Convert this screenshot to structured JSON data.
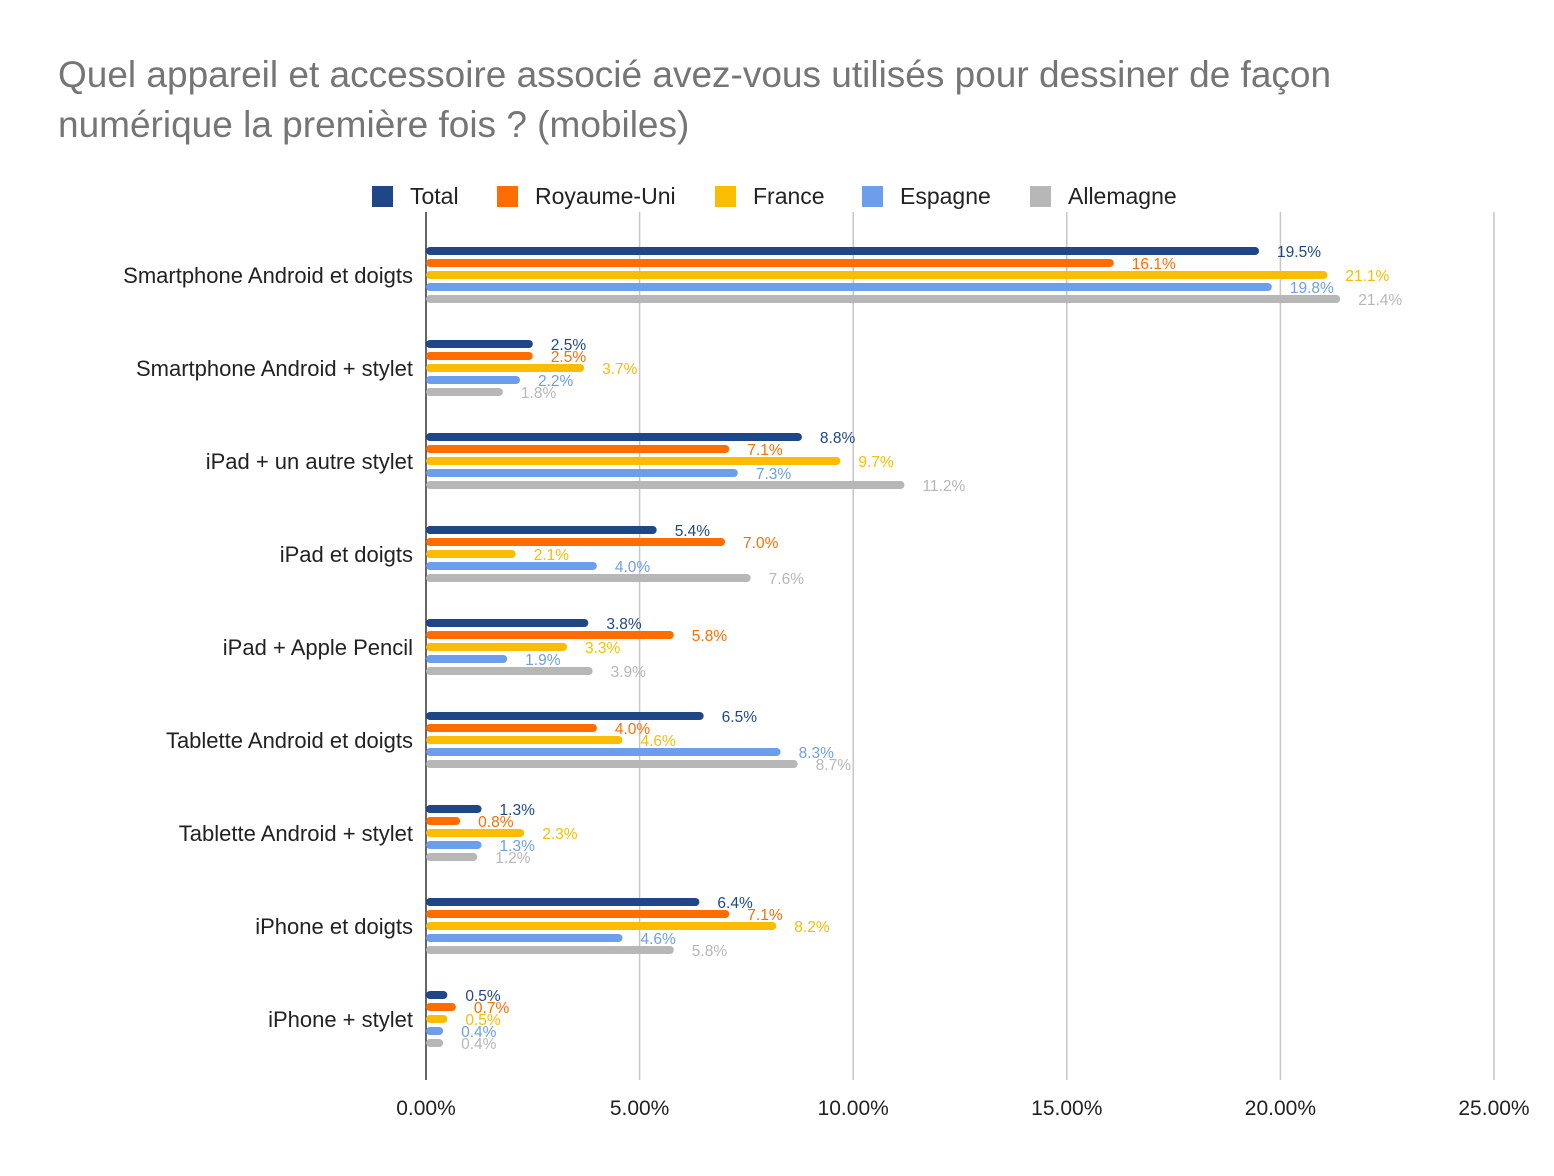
{
  "chart_data": {
    "type": "bar",
    "orientation": "horizontal",
    "title": "Quel appareil et accessoire associé avez-vous utilisés pour dessiner de façon\nnumérique la première fois ? (mobiles)",
    "legend_position": "top",
    "grid": true,
    "xlim": [
      0,
      25
    ],
    "x_ticks": [
      0,
      5,
      10,
      15,
      20,
      25
    ],
    "x_tick_labels": [
      "0.00%",
      "5.00%",
      "10.00%",
      "15.00%",
      "20.00%",
      "25.00%"
    ],
    "categories": [
      "Smartphone Android et doigts",
      "Smartphone Android + stylet",
      "iPad + un autre stylet",
      "iPad et doigts",
      "iPad + Apple Pencil",
      "Tablette Android et doigts",
      "Tablette Android + stylet",
      "iPhone et doigts",
      "iPhone + stylet"
    ],
    "series": [
      {
        "name": "Total",
        "color": "#1f4788",
        "values": [
          19.5,
          2.5,
          8.8,
          5.4,
          3.8,
          6.5,
          1.3,
          6.4,
          0.5
        ],
        "labels": [
          "19.5%",
          "2.5%",
          "8.8%",
          "5.4%",
          "3.8%",
          "6.5%",
          "1.3%",
          "6.4%",
          "0.5%"
        ]
      },
      {
        "name": "Royaume-Uni",
        "color": "#ff6d01",
        "values": [
          16.1,
          2.5,
          7.1,
          7.0,
          5.8,
          4.0,
          0.8,
          7.1,
          0.7
        ],
        "labels": [
          "16.1%",
          "2.5%",
          "7.1%",
          "7.0%",
          "5.8%",
          "4.0%",
          "0.8%",
          "7.1%",
          "0.7%"
        ]
      },
      {
        "name": "France",
        "color": "#fbbc04",
        "values": [
          21.1,
          3.7,
          9.7,
          2.1,
          3.3,
          4.6,
          2.3,
          8.2,
          0.5
        ],
        "labels": [
          "21.1%",
          "3.7%",
          "9.7%",
          "2.1%",
          "3.3%",
          "4.6%",
          "2.3%",
          "8.2%",
          "0.5%"
        ]
      },
      {
        "name": "Espagne",
        "color": "#6d9eeb",
        "values": [
          19.8,
          2.2,
          7.3,
          4.0,
          1.9,
          8.3,
          1.3,
          4.6,
          0.4
        ],
        "labels": [
          "19.8%",
          "2.2%",
          "7.3%",
          "4.0%",
          "1.9%",
          "8.3%",
          "1.3%",
          "4.6%",
          "0.4%"
        ]
      },
      {
        "name": "Allemagne",
        "color": "#b7b7b7",
        "values": [
          21.4,
          1.8,
          11.2,
          7.6,
          3.9,
          8.7,
          1.2,
          5.8,
          0.4
        ],
        "labels": [
          "21.4%",
          "1.8%",
          "11.2%",
          "7.6%",
          "3.9%",
          "8.7%",
          "1.2%",
          "5.8%",
          "0.4%"
        ]
      }
    ]
  }
}
